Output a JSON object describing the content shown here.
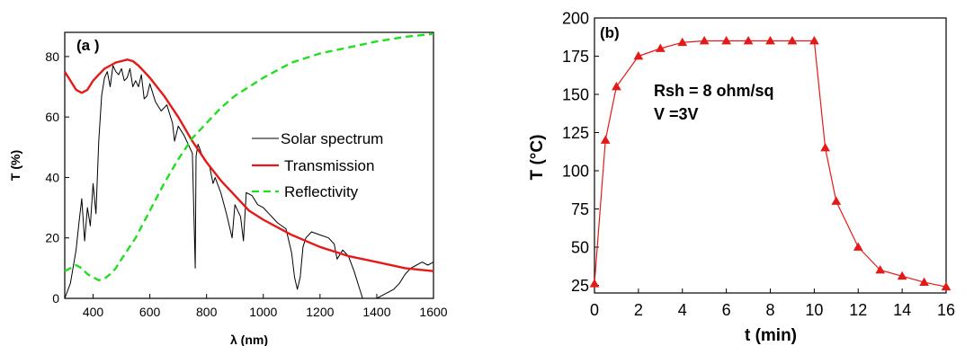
{
  "chart_data": [
    {
      "type": "line",
      "panel_label": "(a )",
      "xlabel": "λ (nm)",
      "ylabel": "T (%)",
      "xlim": [
        300,
        1600
      ],
      "ylim": [
        0,
        88
      ],
      "x_ticks": [
        400,
        600,
        800,
        1000,
        1200,
        1400,
        1600
      ],
      "y_ticks": [
        0,
        20,
        40,
        60,
        80
      ],
      "grid": false,
      "legend_position": "right",
      "series": [
        {
          "name": "Solar spectrum",
          "color": "#000000",
          "style": "solid-thin",
          "x": [
            300,
            320,
            340,
            350,
            360,
            370,
            380,
            390,
            400,
            410,
            420,
            430,
            440,
            450,
            460,
            470,
            480,
            490,
            500,
            510,
            520,
            530,
            540,
            550,
            560,
            570,
            580,
            590,
            600,
            620,
            640,
            660,
            680,
            687,
            700,
            720,
            740,
            750,
            760,
            763,
            770,
            790,
            810,
            823,
            830,
            850,
            870,
            890,
            900,
            920,
            930,
            940,
            960,
            980,
            1000,
            1020,
            1050,
            1080,
            1100,
            1110,
            1120,
            1130,
            1140,
            1150,
            1170,
            1200,
            1230,
            1250,
            1260,
            1280,
            1300,
            1320,
            1340,
            1350,
            1360,
            1400,
            1420,
            1440,
            1460,
            1480,
            1500,
            1520,
            1540,
            1560,
            1580,
            1600
          ],
          "y": [
            0,
            5,
            16,
            25,
            33,
            19,
            30,
            24,
            38,
            28,
            52,
            67,
            73,
            75,
            70,
            77,
            75,
            74,
            76,
            72,
            73,
            76,
            70,
            72,
            70,
            74,
            66,
            67,
            71,
            65,
            62,
            64,
            58,
            52,
            57,
            54,
            50,
            48,
            10,
            47,
            51,
            46,
            44,
            38,
            40,
            35,
            28,
            20,
            31,
            27,
            19,
            35,
            34,
            31,
            30,
            28,
            25,
            23,
            15,
            7,
            3,
            7,
            17,
            20,
            22,
            21,
            20,
            18,
            13,
            16,
            14,
            9,
            3,
            0,
            0,
            0,
            1,
            2,
            3,
            5,
            8,
            10,
            11,
            12,
            11,
            12
          ]
        },
        {
          "name": "Transmission",
          "color": "#e41a1a",
          "style": "solid-thick",
          "x": [
            300,
            320,
            340,
            360,
            380,
            400,
            420,
            440,
            460,
            480,
            500,
            520,
            540,
            560,
            580,
            600,
            650,
            700,
            750,
            800,
            850,
            900,
            950,
            1000,
            1100,
            1200,
            1300,
            1400,
            1500,
            1600
          ],
          "y": [
            75,
            72,
            69,
            68,
            69,
            72,
            74,
            76,
            77,
            78,
            78.5,
            79,
            78.5,
            77,
            75,
            73,
            67,
            60,
            52,
            45,
            39,
            34,
            29,
            26,
            21,
            17,
            14,
            12,
            10,
            9
          ]
        },
        {
          "name": "Reflectivity",
          "color": "#22dd22",
          "style": "dashed",
          "x": [
            300,
            320,
            340,
            360,
            380,
            400,
            420,
            440,
            460,
            480,
            500,
            550,
            600,
            650,
            700,
            750,
            800,
            850,
            900,
            1000,
            1100,
            1200,
            1300,
            1400,
            1500,
            1600
          ],
          "y": [
            9,
            10,
            11,
            10,
            8,
            7,
            6,
            6.5,
            8,
            10,
            13,
            20,
            29,
            38,
            46,
            53,
            58,
            63,
            67,
            73,
            78,
            81,
            83,
            85,
            86.5,
            87.5
          ]
        }
      ]
    },
    {
      "type": "line",
      "panel_label": "(b)",
      "xlabel": "t (min)",
      "ylabel": "T (°C)",
      "xlim": [
        0,
        16
      ],
      "ylim": [
        20,
        200
      ],
      "x_ticks": [
        0,
        2,
        4,
        6,
        8,
        10,
        12,
        14,
        16
      ],
      "y_ticks": [
        25,
        50,
        75,
        100,
        125,
        150,
        175,
        200
      ],
      "grid": false,
      "annotations": [
        "Rsh = 8 ohm/sq",
        "V =3V"
      ],
      "series": [
        {
          "color": "#e41a1a",
          "marker": "triangle",
          "x": [
            0,
            0.5,
            1,
            2,
            3,
            4,
            5,
            6,
            7,
            8,
            9,
            10,
            10.5,
            11,
            12,
            13,
            14,
            15,
            16
          ],
          "y": [
            26,
            120,
            155,
            175,
            180,
            184,
            185,
            185,
            185,
            185,
            185,
            185,
            115,
            80,
            50,
            35,
            31,
            27,
            24
          ]
        }
      ]
    }
  ]
}
